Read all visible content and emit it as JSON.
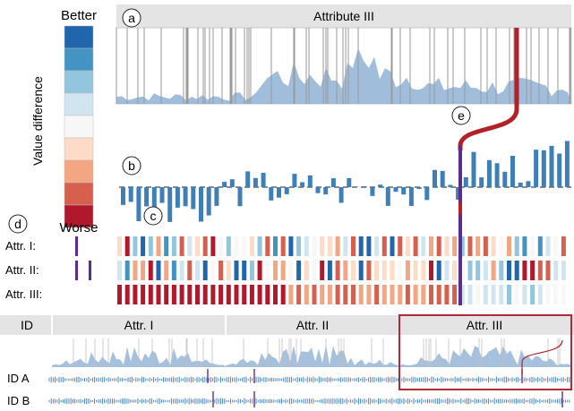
{
  "legend": {
    "better": "Better",
    "worse": "Worse",
    "axis_label": "Value difference",
    "colors": [
      "#2166ac",
      "#4393c3",
      "#92c5de",
      "#d1e5f0",
      "#f7f7f7",
      "#fddbc7",
      "#f4a582",
      "#d6604d",
      "#b2182b"
    ]
  },
  "callouts": [
    "a",
    "b",
    "c",
    "d",
    "e"
  ],
  "attribute_view": {
    "title": "Attribute III"
  },
  "attr_rows": [
    "Attr. I:",
    "Attr. II:",
    "Attr. III:"
  ],
  "overview": {
    "id_header": "ID",
    "columns": [
      "Attr. I",
      "Attr. II",
      "Attr. III"
    ],
    "rows": [
      "ID A",
      "ID B"
    ]
  },
  "colors": {
    "area_fill": "#8fb2d6",
    "bar": "#3f7fb8",
    "highlight": "#b22028",
    "selection": "#5b2d8e",
    "header_bg": "#e4e4e4",
    "frame": "#b22a3a"
  }
}
